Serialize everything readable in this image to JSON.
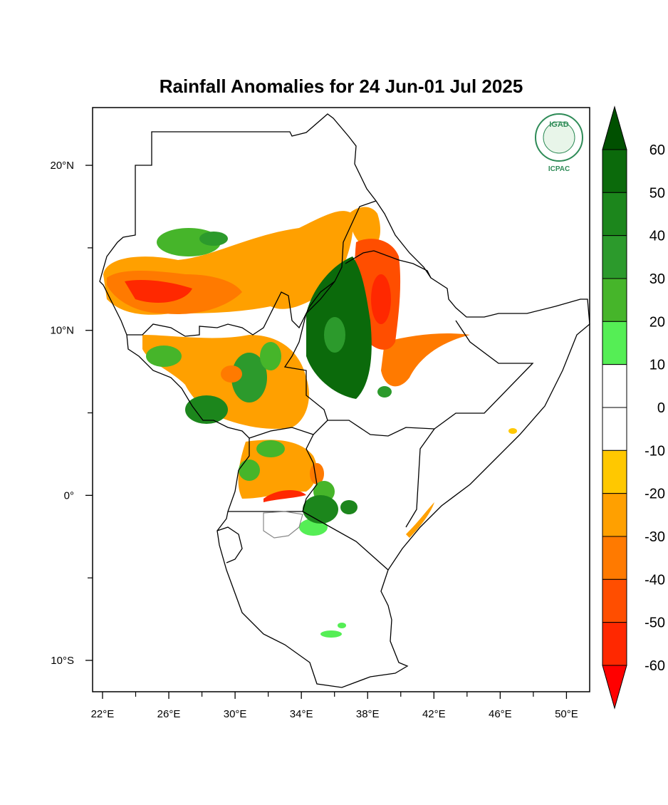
{
  "title": "Rainfall Anomalies for 24 Jun-01 Jul 2025",
  "map": {
    "xlim": [
      21.4,
      51.4
    ],
    "ylim": [
      -11.9,
      23.5
    ],
    "xticks": [
      {
        "value": 22,
        "label": "22°E"
      },
      {
        "value": 26,
        "label": "26°E"
      },
      {
        "value": 30,
        "label": "30°E"
      },
      {
        "value": 34,
        "label": "34°E"
      },
      {
        "value": 38,
        "label": "38°E"
      },
      {
        "value": 42,
        "label": "42°E"
      },
      {
        "value": 46,
        "label": "46°E"
      },
      {
        "value": 50,
        "label": "50°E"
      }
    ],
    "yticks": [
      {
        "value": 20,
        "label": "20°N"
      },
      {
        "value": 10,
        "label": "10°N"
      },
      {
        "value": 0,
        "label": "0°"
      },
      {
        "value": -10,
        "label": "10°S"
      }
    ]
  },
  "colorbar": {
    "levels": [
      60,
      50,
      40,
      30,
      20,
      10,
      0,
      -10,
      -20,
      -30,
      -40,
      -50,
      -60
    ],
    "colors": [
      "#005000",
      "#0b6a0b",
      "#1c861c",
      "#2c9a2c",
      "#46b52a",
      "#55ee55",
      "#ffffff",
      "#ffffff",
      "#ffc800",
      "#ffa000",
      "#ff7a00",
      "#ff4e00",
      "#ff2800",
      "#ff0000"
    ]
  },
  "logo": {
    "top": "IGAD",
    "bottom": "ICPAC"
  }
}
